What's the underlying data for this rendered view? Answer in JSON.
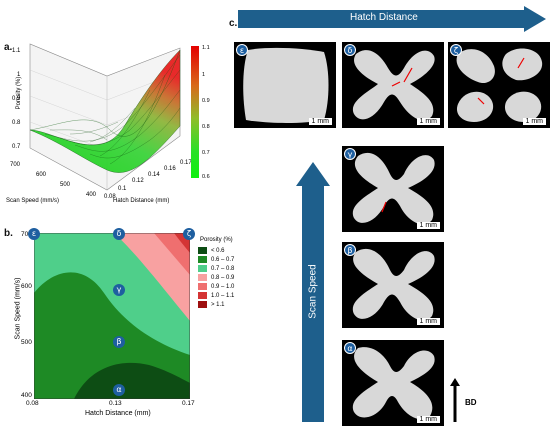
{
  "panels": {
    "a": "a.",
    "b": "b.",
    "c": "c."
  },
  "panel_a": {
    "ylabel": "Porosity (%)",
    "xlabel": "Hatch Distance (mm)",
    "depth_label": "Scan Speed (mm/s)",
    "z_ticks": [
      "0.7",
      "0.8",
      "0.9",
      "1",
      "1.1"
    ],
    "x_ticks": [
      "0.08",
      "0.1",
      "0.12",
      "0.14",
      "0.16",
      "0.17"
    ],
    "depth_ticks": [
      "400",
      "500",
      "600",
      "700"
    ],
    "colorbar_ticks": [
      "1.1",
      "1",
      "0.9",
      "0.8",
      "0.7",
      "0.6"
    ]
  },
  "panel_b": {
    "ylabel": "Scan Speed (mm/s)",
    "xlabel": "Hatch Distance (mm)",
    "y_ticks": [
      "400",
      "500",
      "600",
      "700"
    ],
    "x_ticks": [
      "0.08",
      "0.13",
      "0.17"
    ],
    "legend_title": "Porosity (%)",
    "legend_items": [
      {
        "label": "< 0.6",
        "color": "#0d4d14"
      },
      {
        "label": "0.6 – 0.7",
        "color": "#1e8a25"
      },
      {
        "label": "0.7 – 0.8",
        "color": "#4fcf8a"
      },
      {
        "label": "0.8 – 0.9",
        "color": "#f8a1a1"
      },
      {
        "label": "0.9 – 1.0",
        "color": "#ef6f6f"
      },
      {
        "label": "1.0 – 1.1",
        "color": "#d43434"
      },
      {
        "label": "> 1.1",
        "color": "#9e0f0f"
      }
    ],
    "markers": [
      "ε",
      "δ",
      "ζ",
      "γ",
      "β",
      "α"
    ]
  },
  "panel_c": {
    "hatch_arrow_label": "Hatch Distance",
    "speed_arrow_label": "Scan Speed",
    "bd_label": "BD",
    "scale_label": "1 mm",
    "images": [
      "ε",
      "δ",
      "ζ",
      "γ",
      "β",
      "α"
    ]
  },
  "colors": {
    "arrow": "#1e5f8c",
    "marker": "#1e5fa0"
  }
}
